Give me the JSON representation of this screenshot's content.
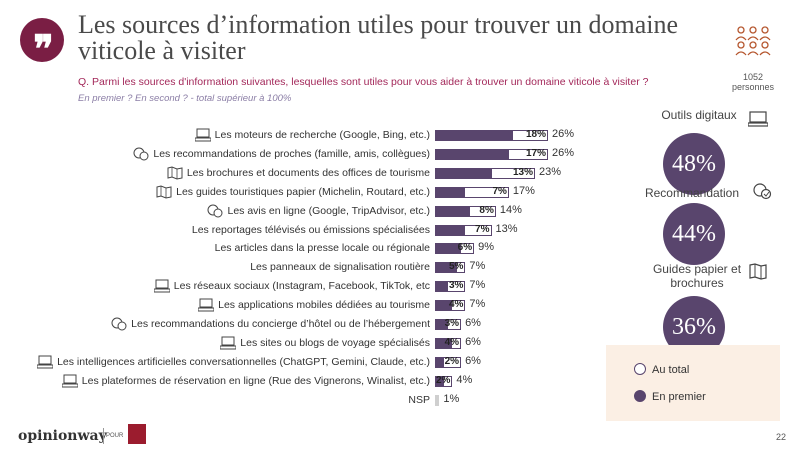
{
  "header": {
    "title": "Les sources d’information utiles pour trouver un domaine viticole à visiter",
    "question": "Q. Parmi les sources d'information suivantes, lesquelles sont utiles pour vous aider à trouver un domaine viticole à visiter ?",
    "note": "En premier ? En second ?  - total supérieur à 100%",
    "sample_n": "1052",
    "sample_label": "personnes"
  },
  "chart_data": {
    "type": "bar",
    "orientation": "horizontal",
    "categories": [
      "Les moteurs de recherche (Google, Bing, etc.)",
      "Les recommandations de proches (famille, amis, collègues)",
      "Les brochures et documents des offices de tourisme",
      "Les guides touristiques papier (Michelin, Routard, etc.)",
      "Les avis en ligne (Google, TripAdvisor, etc.)",
      "Les reportages télévisés ou émissions spécialisées",
      "Les articles dans la presse locale ou régionale",
      "Les panneaux de signalisation routière",
      "Les réseaux sociaux (Instagram, Facebook, TikTok, etc",
      "Les applications mobiles dédiées au tourisme",
      "Les recommandations du concierge d’hôtel ou de l’hébergement",
      "Les sites ou blogs de voyage spécialisés",
      "Les intelligences artificielles conversationnelles (ChatGPT, Gemini, Claude, etc.)",
      "Les plateformes de réservation en ligne (Rue des Vignerons, Winalist, etc.)",
      "NSP"
    ],
    "icons": [
      "computer-icon",
      "people-chat-icon",
      "book-icon",
      "book-icon",
      "people-chat-icon",
      "",
      "",
      "",
      "computer-icon",
      "computer-icon",
      "people-chat-icon",
      "computer-icon",
      "computer-icon",
      "computer-icon",
      ""
    ],
    "series": [
      {
        "name": "En premier",
        "values": [
          18,
          17,
          13,
          7,
          8,
          7,
          6,
          5,
          3,
          4,
          3,
          4,
          2,
          2,
          null
        ],
        "labels": [
          "18%",
          "17%",
          "13%",
          "7%",
          "8%",
          "7%",
          "6%",
          "5%",
          "3%",
          "4%",
          "3%",
          "4%",
          "2%",
          "2%",
          ""
        ]
      },
      {
        "name": "Au total",
        "values": [
          26,
          26,
          23,
          17,
          14,
          13,
          9,
          7,
          7,
          7,
          6,
          6,
          6,
          4,
          1
        ],
        "labels": [
          "26%",
          "26%",
          "23%",
          "17%",
          "14%",
          "13%",
          "9%",
          "7%",
          "7%",
          "7%",
          "6%",
          "6%",
          "6%",
          "4%",
          "1%"
        ]
      }
    ],
    "xlim": [
      0,
      26
    ],
    "legend_position": "bottom-right",
    "colors": {
      "first": "#59456d",
      "total_fill": "#ffffff",
      "total_border": "#59456d"
    }
  },
  "kpis": [
    {
      "title": "Outils digitaux",
      "value": "48%",
      "icon": "computer-icon"
    },
    {
      "title": "Recommandation",
      "value": "44%",
      "icon": "people-chat-icon"
    },
    {
      "title_line1": "Guides papier et",
      "title_line2": "brochures",
      "value": "36%",
      "icon": "book-icon"
    }
  ],
  "legend": {
    "total": "Au total",
    "first": "En premier"
  },
  "footer": {
    "logo": "opinionway",
    "pour": "POUR",
    "page": "22"
  }
}
